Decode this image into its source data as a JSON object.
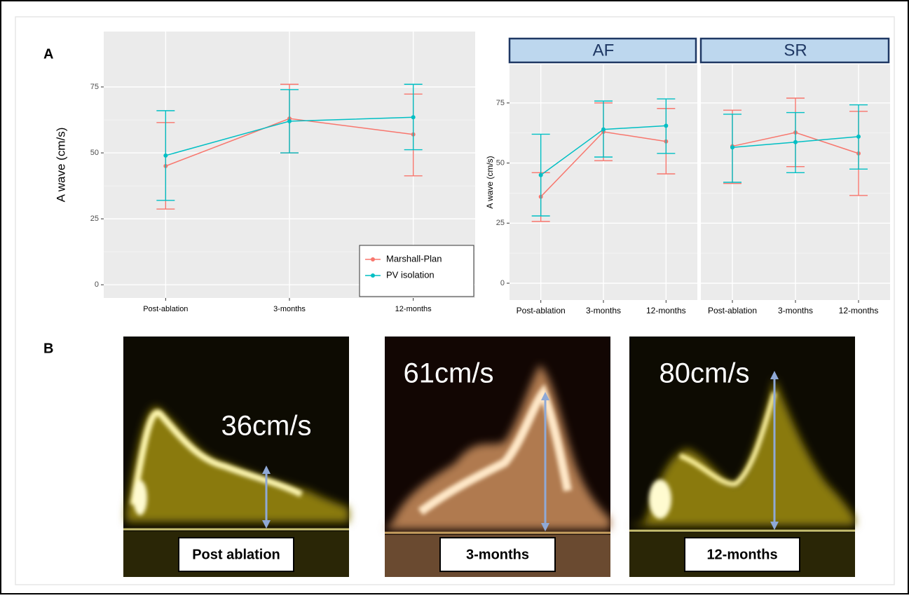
{
  "panel_labels": [
    "A",
    "B"
  ],
  "chart_data": [
    {
      "type": "line",
      "ylabel": "A wave (cm/s)",
      "categories": [
        "Post-ablation",
        "3-months",
        "12-months"
      ],
      "ylim": [
        -5,
        96
      ],
      "yticks": [
        0,
        25,
        50,
        75
      ],
      "grid": true,
      "legend": "bottom-right",
      "series": [
        {
          "name": "Marshall-Plan",
          "color": "#f8766d",
          "values": [
            45,
            63,
            57
          ],
          "ymin": [
            28.7,
            50,
            41.3
          ],
          "ymax": [
            61.5,
            76,
            72.3
          ]
        },
        {
          "name": "PV isolation",
          "color": "#00bfc4",
          "values": [
            49,
            62,
            63.5
          ],
          "ymin": [
            32,
            50,
            51.2
          ],
          "ymax": [
            66,
            74,
            76
          ]
        }
      ]
    },
    {
      "type": "line",
      "ylabel": "A wave (cm/s)",
      "categories": [
        "Post-ablation",
        "3-months",
        "12-months"
      ],
      "ylim": [
        -7,
        91
      ],
      "yticks": [
        0,
        25,
        50,
        75
      ],
      "grid": true,
      "facets": [
        {
          "title": "AF",
          "series": [
            {
              "color": "#f8766d",
              "values": [
                36,
                63,
                59
              ],
              "ymin": [
                25.7,
                51,
                45.5
              ],
              "ymax": [
                46,
                75,
                72.7
              ]
            },
            {
              "color": "#00bfc4",
              "values": [
                45,
                64,
                65.5
              ],
              "ymin": [
                28,
                52.5,
                54
              ],
              "ymax": [
                62,
                75.8,
                76.7
              ]
            }
          ]
        },
        {
          "title": "SR",
          "series": [
            {
              "color": "#f8766d",
              "values": [
                57,
                62.7,
                54
              ],
              "ymin": [
                41.5,
                48.5,
                36.5
              ],
              "ymax": [
                72,
                77,
                71.5
              ]
            },
            {
              "color": "#00bfc4",
              "values": [
                56.5,
                58.7,
                61
              ],
              "ymin": [
                42,
                46,
                47.5
              ],
              "ymax": [
                70.3,
                71,
                74.2
              ]
            }
          ]
        }
      ]
    }
  ],
  "images": [
    {
      "speed": "36cm/s",
      "label": "Post ablation"
    },
    {
      "speed": "61cm/s",
      "label": "3-months"
    },
    {
      "speed": "80cm/s",
      "label": "12-months"
    }
  ]
}
